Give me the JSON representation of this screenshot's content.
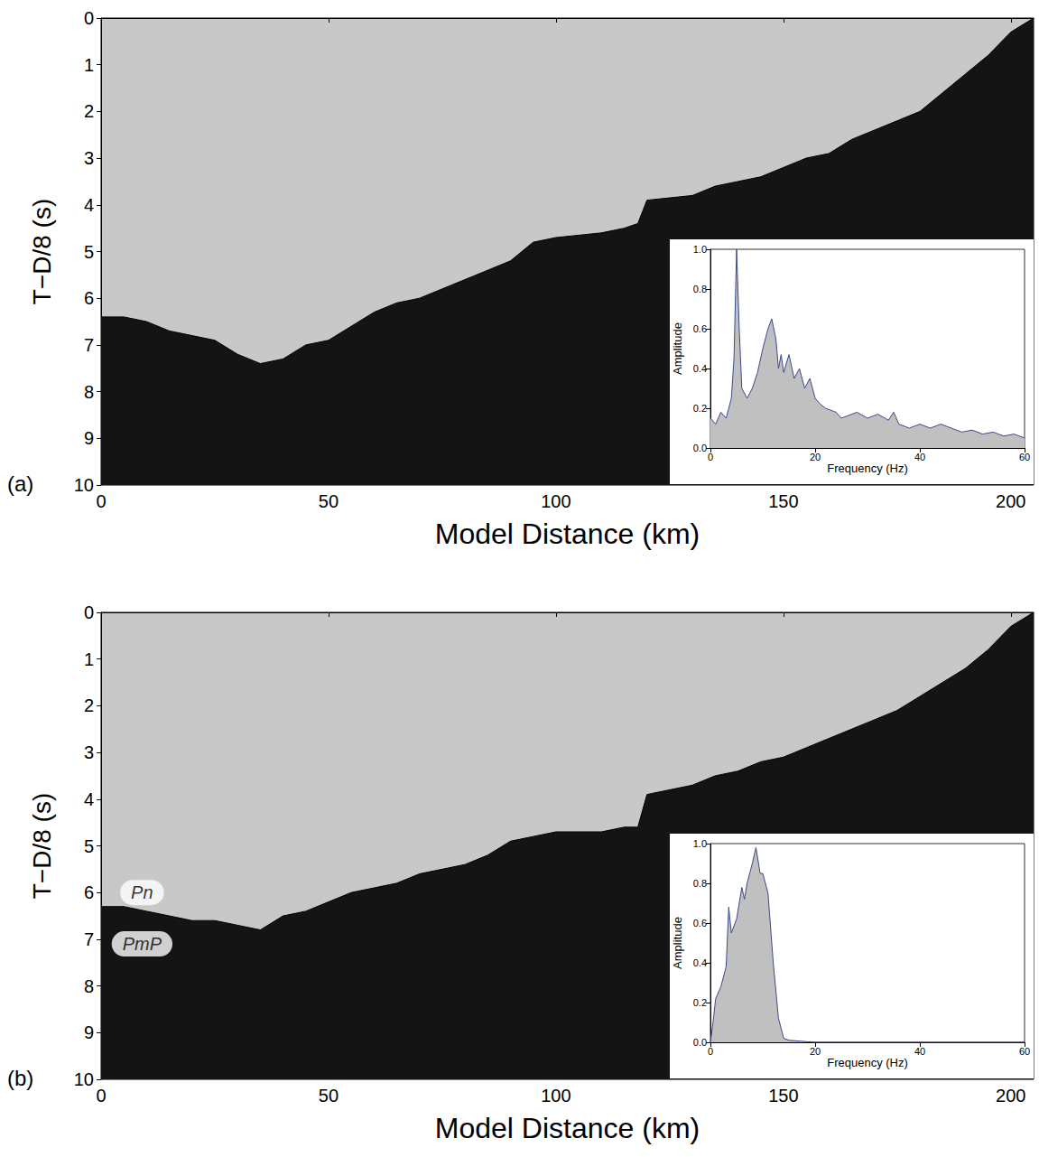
{
  "chart_data": [
    {
      "type": "area",
      "panel": "(a)",
      "x_label": "Model Distance (km)",
      "y_label": "T−D/8 (s)",
      "x": [
        0,
        5,
        10,
        15,
        20,
        25,
        30,
        35,
        40,
        45,
        50,
        55,
        60,
        65,
        70,
        75,
        80,
        85,
        90,
        95,
        100,
        105,
        110,
        115,
        118,
        120,
        125,
        130,
        135,
        140,
        145,
        150,
        155,
        160,
        165,
        170,
        175,
        180,
        185,
        190,
        195,
        200,
        205
      ],
      "values": [
        6.4,
        6.4,
        6.5,
        6.7,
        6.8,
        6.9,
        7.2,
        7.4,
        7.3,
        7.0,
        6.9,
        6.6,
        6.3,
        6.1,
        6.0,
        5.8,
        5.6,
        5.4,
        5.2,
        4.8,
        4.7,
        4.65,
        4.6,
        4.5,
        4.4,
        3.9,
        3.85,
        3.8,
        3.6,
        3.5,
        3.4,
        3.2,
        3.0,
        2.9,
        2.6,
        2.4,
        2.2,
        2.0,
        1.6,
        1.2,
        0.8,
        0.3,
        0.0
      ],
      "color": "#141414",
      "xlim": [
        0,
        205
      ],
      "xticks": [
        0,
        50,
        100,
        150,
        200
      ],
      "ylim": [
        10,
        0
      ],
      "yticks": [
        0,
        1,
        2,
        3,
        4,
        5,
        6,
        7,
        8,
        9,
        10
      ],
      "inset": {
        "type": "area",
        "x_label": "Frequency (Hz)",
        "y_label": "Amplitude",
        "x": [
          0,
          1,
          2,
          3,
          4,
          4.5,
          5,
          5.5,
          6,
          7,
          8,
          9,
          10,
          11,
          11.7,
          12.5,
          13,
          13.5,
          14,
          15,
          16,
          17,
          18,
          19,
          20,
          21,
          22,
          24,
          25,
          26,
          28,
          30,
          32,
          34,
          35,
          36,
          38,
          40,
          42,
          44,
          46,
          48,
          50,
          52,
          54,
          56,
          58,
          60
        ],
        "values": [
          0.15,
          0.12,
          0.18,
          0.15,
          0.25,
          0.45,
          1.0,
          0.6,
          0.3,
          0.25,
          0.3,
          0.38,
          0.5,
          0.6,
          0.65,
          0.55,
          0.4,
          0.47,
          0.38,
          0.47,
          0.35,
          0.4,
          0.3,
          0.35,
          0.25,
          0.22,
          0.2,
          0.18,
          0.15,
          0.16,
          0.18,
          0.15,
          0.17,
          0.14,
          0.18,
          0.12,
          0.1,
          0.12,
          0.1,
          0.12,
          0.1,
          0.08,
          0.09,
          0.07,
          0.08,
          0.06,
          0.07,
          0.05
        ],
        "color": "#c0c0c0",
        "xlim": [
          0,
          60
        ],
        "xticks": [
          0,
          20,
          40,
          60
        ],
        "ylim": [
          0,
          1
        ],
        "yticks": [
          {
            "value": 0,
            "label": "0.0"
          },
          0.2,
          0.4,
          0.6,
          0.8,
          {
            "value": 1,
            "label": "1.0"
          }
        ]
      }
    },
    {
      "type": "area",
      "panel": "(b)",
      "x_label": "Model Distance (km)",
      "y_label": "T−D/8 (s)",
      "x": [
        0,
        5,
        10,
        15,
        20,
        25,
        30,
        35,
        40,
        45,
        50,
        55,
        60,
        65,
        70,
        75,
        80,
        85,
        90,
        95,
        100,
        105,
        110,
        115,
        118,
        120,
        125,
        130,
        135,
        140,
        145,
        150,
        155,
        160,
        165,
        170,
        175,
        180,
        185,
        190,
        195,
        200,
        205
      ],
      "values": [
        6.3,
        6.3,
        6.4,
        6.5,
        6.6,
        6.6,
        6.7,
        6.8,
        6.5,
        6.4,
        6.2,
        6.0,
        5.9,
        5.8,
        5.6,
        5.5,
        5.4,
        5.2,
        4.9,
        4.8,
        4.7,
        4.7,
        4.7,
        4.6,
        4.6,
        3.9,
        3.8,
        3.7,
        3.5,
        3.4,
        3.2,
        3.1,
        2.9,
        2.7,
        2.5,
        2.3,
        2.1,
        1.8,
        1.5,
        1.2,
        0.8,
        0.3,
        0.0
      ],
      "color": "#141414",
      "xlim": [
        0,
        205
      ],
      "xticks": [
        0,
        50,
        100,
        150,
        200
      ],
      "ylim": [
        10,
        0
      ],
      "yticks": [
        0,
        1,
        2,
        3,
        4,
        5,
        6,
        7,
        8,
        9,
        10
      ],
      "annotations": [
        {
          "text": "Pn",
          "x": 9,
          "y": 6.0
        },
        {
          "text": "PmP",
          "x": 9,
          "y": 7.1
        }
      ],
      "inset": {
        "type": "area",
        "x_label": "Frequency (Hz)",
        "y_label": "Amplitude",
        "x": [
          0,
          0.5,
          1,
          2,
          3,
          3.5,
          4,
          5,
          6,
          6.5,
          7,
          8,
          8.7,
          9.5,
          10,
          11,
          12,
          13,
          14,
          15,
          20,
          30,
          40,
          50,
          60
        ],
        "values": [
          0.0,
          0.1,
          0.22,
          0.28,
          0.38,
          0.68,
          0.55,
          0.62,
          0.78,
          0.72,
          0.8,
          0.9,
          0.98,
          0.85,
          0.85,
          0.75,
          0.4,
          0.12,
          0.02,
          0.01,
          0.0,
          0.0,
          0.0,
          0.0,
          0.0
        ],
        "color": "#c0c0c0",
        "xlim": [
          0,
          60
        ],
        "xticks": [
          0,
          20,
          40,
          60
        ],
        "ylim": [
          0,
          1
        ],
        "yticks": [
          {
            "value": 0,
            "label": "0.0"
          },
          0.2,
          0.4,
          0.6,
          0.8,
          {
            "value": 1,
            "label": "1.0"
          }
        ]
      }
    }
  ]
}
